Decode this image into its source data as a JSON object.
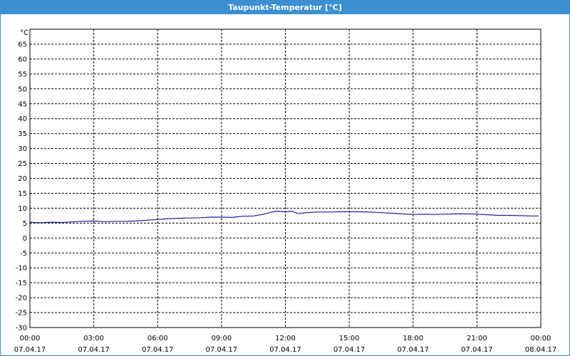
{
  "window": {
    "title": "Taupunkt-Temperatur [°C]"
  },
  "colors": {
    "titlebar": "#3c8fd0",
    "line": "#1c1c9a",
    "grid": "#000000",
    "axis": "#000000"
  },
  "chart_data": {
    "type": "line",
    "ylabel": "°C",
    "ylim": [
      -30,
      70
    ],
    "yticks": [
      65,
      60,
      55,
      50,
      45,
      40,
      35,
      30,
      25,
      20,
      15,
      10,
      5,
      0,
      -5,
      -10,
      -15,
      -20,
      -25,
      -30
    ],
    "xlim": [
      "2017-04-07 00:00",
      "2017-04-08 00:00"
    ],
    "xticks": [
      {
        "time": "00:00",
        "date": "07.04.17",
        "hour": 0
      },
      {
        "time": "03:00",
        "date": "07.04.17",
        "hour": 3
      },
      {
        "time": "06:00",
        "date": "07.04.17",
        "hour": 6
      },
      {
        "time": "09:00",
        "date": "07.04.17",
        "hour": 9
      },
      {
        "time": "12:00",
        "date": "07.04.17",
        "hour": 12
      },
      {
        "time": "15:00",
        "date": "07.04.17",
        "hour": 15
      },
      {
        "time": "18:00",
        "date": "07.04.17",
        "hour": 18
      },
      {
        "time": "21:00",
        "date": "07.04.17",
        "hour": 21
      },
      {
        "time": "00:00",
        "date": "08.04.17",
        "hour": 24
      }
    ],
    "grid": true,
    "series": [
      {
        "x": [
          0,
          0.5,
          1,
          1.5,
          2,
          2.5,
          3,
          3.5,
          4,
          4.5,
          5,
          5.5,
          6,
          6.5,
          7,
          7.5,
          8,
          8.5,
          9,
          9.5,
          10,
          10.5,
          11,
          11.3,
          11.6,
          12,
          12.3,
          12.6,
          13,
          13.5,
          14,
          14.5,
          15,
          15.5,
          16,
          16.5,
          17,
          17.5,
          18,
          18.5,
          19,
          19.5,
          20,
          20.5,
          21,
          21.5,
          22,
          22.5,
          23,
          23.5,
          23.9
        ],
        "y": [
          5.3,
          5.1,
          5.3,
          5.2,
          5.4,
          5.6,
          5.7,
          5.5,
          5.6,
          5.6,
          5.7,
          6.0,
          6.2,
          6.5,
          6.6,
          6.7,
          6.8,
          7.0,
          7.0,
          6.9,
          7.3,
          7.4,
          8.0,
          8.6,
          9.0,
          8.8,
          9.0,
          8.2,
          8.5,
          8.7,
          8.7,
          8.8,
          8.8,
          8.8,
          8.7,
          8.5,
          8.3,
          8.1,
          7.9,
          8.0,
          7.9,
          8.0,
          8.1,
          8.1,
          8.0,
          7.8,
          7.6,
          7.6,
          7.5,
          7.4,
          7.4
        ]
      }
    ]
  }
}
